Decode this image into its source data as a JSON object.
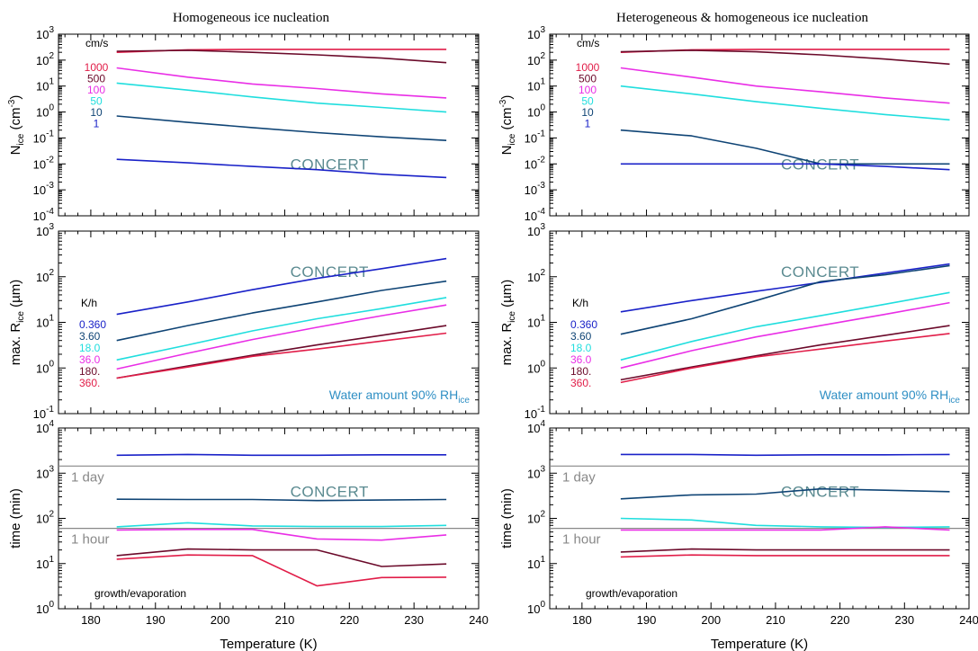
{
  "colors": {
    "1000": "#e11d48",
    "500": "#6b0a2a",
    "100": "#e92ee6",
    "50": "#20dede",
    "10": "#0f4475",
    "1": "#1a22c8",
    "frame": "#000000",
    "refline": "#888888",
    "water_text": "#2f8fc4",
    "watermark": "#5a8a90"
  },
  "figure": {
    "titles": [
      "Homogeneous ice nucleation",
      "Heterogeneous & homogeneous ice nucleation"
    ],
    "xlabel": "Temperature (K)",
    "xticks": [
      "180",
      "190",
      "200",
      "210",
      "220",
      "230",
      "240"
    ],
    "watermark": "CONCERT",
    "legend_top": {
      "header": "cm/s",
      "items": [
        "1000",
        "500",
        "100",
        "50",
        "10",
        "1"
      ]
    },
    "legend_mid": {
      "header": "K/h",
      "items": [
        "0.360",
        "3.60",
        "18.0",
        "36.0",
        "180.",
        "360."
      ]
    },
    "water_text": "Water amount 90% RH",
    "water_sub": "ice",
    "ref_day": "1 day",
    "ref_hour": "1 hour",
    "growth_label": "growth/evaporation"
  },
  "chart_data": [
    {
      "type": "line",
      "panel": "top-left",
      "title": "Homogeneous ice nucleation",
      "ylabel": "N_ice (cm^-3)",
      "yscale": "log",
      "ylim": [
        0.0001,
        1000
      ],
      "xlim": [
        175,
        240
      ],
      "series": [
        {
          "name": "1000",
          "color": "#e11d48",
          "x": [
            184,
            195,
            205,
            215,
            225,
            235
          ],
          "y": [
            200,
            250,
            260,
            260,
            260,
            260
          ]
        },
        {
          "name": "500",
          "color": "#6b0a2a",
          "x": [
            184,
            195,
            205,
            215,
            225,
            235
          ],
          "y": [
            220,
            240,
            200,
            160,
            120,
            80
          ]
        },
        {
          "name": "100",
          "color": "#e92ee6",
          "x": [
            184,
            195,
            205,
            215,
            225,
            235
          ],
          "y": [
            50,
            22,
            12,
            8,
            5,
            3.5
          ]
        },
        {
          "name": "50",
          "color": "#20dede",
          "x": [
            184,
            195,
            205,
            215,
            225,
            235
          ],
          "y": [
            13,
            7,
            3.8,
            2.2,
            1.5,
            1.0
          ]
        },
        {
          "name": "10",
          "color": "#0f4475",
          "x": [
            184,
            195,
            205,
            215,
            225,
            235
          ],
          "y": [
            0.7,
            0.4,
            0.25,
            0.16,
            0.11,
            0.08
          ]
        },
        {
          "name": "1",
          "color": "#1a22c8",
          "x": [
            184,
            195,
            205,
            215,
            225,
            235
          ],
          "y": [
            0.015,
            0.011,
            0.008,
            0.006,
            0.004,
            0.003
          ]
        }
      ]
    },
    {
      "type": "line",
      "panel": "top-right",
      "title": "Heterogeneous & homogeneous ice nucleation",
      "ylabel": "N_ice (cm^-3)",
      "yscale": "log",
      "ylim": [
        0.0001,
        1000
      ],
      "xlim": [
        175,
        240
      ],
      "series": [
        {
          "name": "1000",
          "color": "#e11d48",
          "x": [
            186,
            197,
            207,
            217,
            227,
            237
          ],
          "y": [
            200,
            250,
            260,
            260,
            260,
            260
          ]
        },
        {
          "name": "500",
          "color": "#6b0a2a",
          "x": [
            186,
            197,
            207,
            217,
            227,
            237
          ],
          "y": [
            210,
            240,
            210,
            160,
            110,
            70
          ]
        },
        {
          "name": "100",
          "color": "#e92ee6",
          "x": [
            186,
            197,
            207,
            217,
            227,
            237
          ],
          "y": [
            50,
            22,
            10,
            6,
            3.5,
            2.2
          ]
        },
        {
          "name": "50",
          "color": "#20dede",
          "x": [
            186,
            197,
            207,
            217,
            227,
            237
          ],
          "y": [
            10,
            5,
            2.5,
            1.4,
            0.8,
            0.5
          ]
        },
        {
          "name": "10",
          "color": "#0f4475",
          "x": [
            186,
            197,
            207,
            217,
            227,
            237
          ],
          "y": [
            0.2,
            0.12,
            0.04,
            0.01,
            0.01,
            0.01
          ]
        },
        {
          "name": "1",
          "color": "#1a22c8",
          "x": [
            186,
            197,
            207,
            217,
            227,
            237
          ],
          "y": [
            0.01,
            0.01,
            0.01,
            0.01,
            0.008,
            0.006
          ]
        }
      ]
    },
    {
      "type": "line",
      "panel": "middle-left",
      "ylabel": "max. R_ice (µm)",
      "yscale": "log",
      "ylim": [
        0.1,
        1000
      ],
      "xlim": [
        175,
        240
      ],
      "series": [
        {
          "name": "0.360",
          "color": "#1a22c8",
          "x": [
            184,
            195,
            205,
            215,
            225,
            235
          ],
          "y": [
            15,
            28,
            52,
            92,
            150,
            250
          ]
        },
        {
          "name": "3.60",
          "color": "#0f4475",
          "x": [
            184,
            195,
            205,
            215,
            225,
            235
          ],
          "y": [
            4,
            8.5,
            16,
            28,
            50,
            80
          ]
        },
        {
          "name": "18.0",
          "color": "#20dede",
          "x": [
            184,
            195,
            205,
            215,
            225,
            235
          ],
          "y": [
            1.5,
            3.2,
            6.5,
            12,
            20,
            35
          ]
        },
        {
          "name": "36.0",
          "color": "#e92ee6",
          "x": [
            184,
            195,
            205,
            215,
            225,
            235
          ],
          "y": [
            0.95,
            2.1,
            4.2,
            7.8,
            14,
            24
          ]
        },
        {
          "name": "180.",
          "color": "#6b0a2a",
          "x": [
            184,
            195,
            205,
            215,
            225,
            235
          ],
          "y": [
            0.6,
            1.1,
            1.9,
            3.2,
            5.2,
            8.5
          ]
        },
        {
          "name": "360.",
          "color": "#e11d48",
          "x": [
            184,
            195,
            205,
            215,
            225,
            235
          ],
          "y": [
            0.6,
            1.05,
            1.8,
            2.6,
            3.9,
            5.8
          ]
        }
      ]
    },
    {
      "type": "line",
      "panel": "middle-right",
      "ylabel": "max. R_ice (µm)",
      "yscale": "log",
      "ylim": [
        0.1,
        1000
      ],
      "xlim": [
        175,
        240
      ],
      "series": [
        {
          "name": "0.360",
          "color": "#1a22c8",
          "x": [
            186,
            197,
            207,
            217,
            227,
            237
          ],
          "y": [
            17,
            30,
            48,
            75,
            120,
            190
          ]
        },
        {
          "name": "3.60",
          "color": "#0f4475",
          "x": [
            186,
            197,
            207,
            217,
            227,
            237
          ],
          "y": [
            5.5,
            12,
            30,
            78,
            110,
            175
          ]
        },
        {
          "name": "18.0",
          "color": "#20dede",
          "x": [
            186,
            197,
            207,
            217,
            227,
            237
          ],
          "y": [
            1.5,
            3.8,
            8,
            14,
            25,
            45
          ]
        },
        {
          "name": "36.0",
          "color": "#e92ee6",
          "x": [
            186,
            197,
            207,
            217,
            227,
            237
          ],
          "y": [
            1.0,
            2.4,
            4.8,
            8.5,
            15,
            27
          ]
        },
        {
          "name": "180.",
          "color": "#6b0a2a",
          "x": [
            186,
            197,
            207,
            217,
            227,
            237
          ],
          "y": [
            0.55,
            1.05,
            1.85,
            3.2,
            5.2,
            8.5
          ]
        },
        {
          "name": "360.",
          "color": "#e11d48",
          "x": [
            186,
            197,
            207,
            217,
            227,
            237
          ],
          "y": [
            0.48,
            1.0,
            1.75,
            2.6,
            3.9,
            5.7
          ]
        }
      ]
    },
    {
      "type": "line",
      "panel": "bottom-left",
      "ylabel": "time (min)",
      "xlabel": "Temperature (K)",
      "yscale": "log",
      "ylim": [
        1,
        10000
      ],
      "xlim": [
        175,
        240
      ],
      "reference_lines": [
        {
          "label": "1 day",
          "y": 1440
        },
        {
          "label": "1 hour",
          "y": 60
        }
      ],
      "series": [
        {
          "name": "1",
          "color": "#1a22c8",
          "x": [
            184,
            195,
            205,
            215,
            225,
            235
          ],
          "y": [
            2500,
            2600,
            2500,
            2500,
            2550,
            2550
          ]
        },
        {
          "name": "10",
          "color": "#0f4475",
          "x": [
            184,
            195,
            205,
            215,
            225,
            235
          ],
          "y": [
            265,
            262,
            262,
            248,
            255,
            262
          ]
        },
        {
          "name": "50",
          "color": "#20dede",
          "x": [
            184,
            195,
            205,
            215,
            225,
            235
          ],
          "y": [
            65,
            80,
            68,
            66,
            66,
            70
          ]
        },
        {
          "name": "100",
          "color": "#e92ee6",
          "x": [
            184,
            195,
            205,
            215,
            225,
            235
          ],
          "y": [
            55,
            57,
            57,
            35,
            33,
            43
          ]
        },
        {
          "name": "500",
          "color": "#6b0a2a",
          "x": [
            184,
            195,
            205,
            215,
            225,
            235
          ],
          "y": [
            15,
            21,
            20,
            20,
            8.6,
            9.8
          ]
        },
        {
          "name": "1000",
          "color": "#e11d48",
          "x": [
            184,
            195,
            205,
            215,
            225,
            235
          ],
          "y": [
            12.5,
            15.5,
            15,
            3.2,
            4.9,
            5
          ]
        }
      ]
    },
    {
      "type": "line",
      "panel": "bottom-right",
      "ylabel": "time (min)",
      "xlabel": "Temperature (K)",
      "yscale": "log",
      "ylim": [
        1,
        10000
      ],
      "xlim": [
        175,
        240
      ],
      "reference_lines": [
        {
          "label": "1 day",
          "y": 1440
        },
        {
          "label": "1 hour",
          "y": 60
        }
      ],
      "series": [
        {
          "name": "1",
          "color": "#1a22c8",
          "x": [
            186,
            197,
            207,
            217,
            227,
            237
          ],
          "y": [
            2600,
            2600,
            2500,
            2550,
            2550,
            2600
          ]
        },
        {
          "name": "10",
          "color": "#0f4475",
          "x": [
            186,
            197,
            207,
            217,
            227,
            237
          ],
          "y": [
            270,
            330,
            345,
            450,
            420,
            390
          ]
        },
        {
          "name": "50",
          "color": "#20dede",
          "x": [
            186,
            197,
            207,
            217,
            227,
            237
          ],
          "y": [
            100,
            92,
            70,
            65,
            63,
            65
          ]
        },
        {
          "name": "100",
          "color": "#e92ee6",
          "x": [
            186,
            197,
            207,
            217,
            227,
            237
          ],
          "y": [
            55,
            55,
            55,
            55,
            65,
            55
          ]
        },
        {
          "name": "500",
          "color": "#6b0a2a",
          "x": [
            186,
            197,
            207,
            217,
            227,
            237
          ],
          "y": [
            18,
            21,
            20,
            20,
            20,
            20
          ]
        },
        {
          "name": "1000",
          "color": "#e11d48",
          "x": [
            186,
            197,
            207,
            217,
            227,
            237
          ],
          "y": [
            14,
            15.5,
            15,
            15,
            15,
            15
          ]
        }
      ]
    }
  ]
}
